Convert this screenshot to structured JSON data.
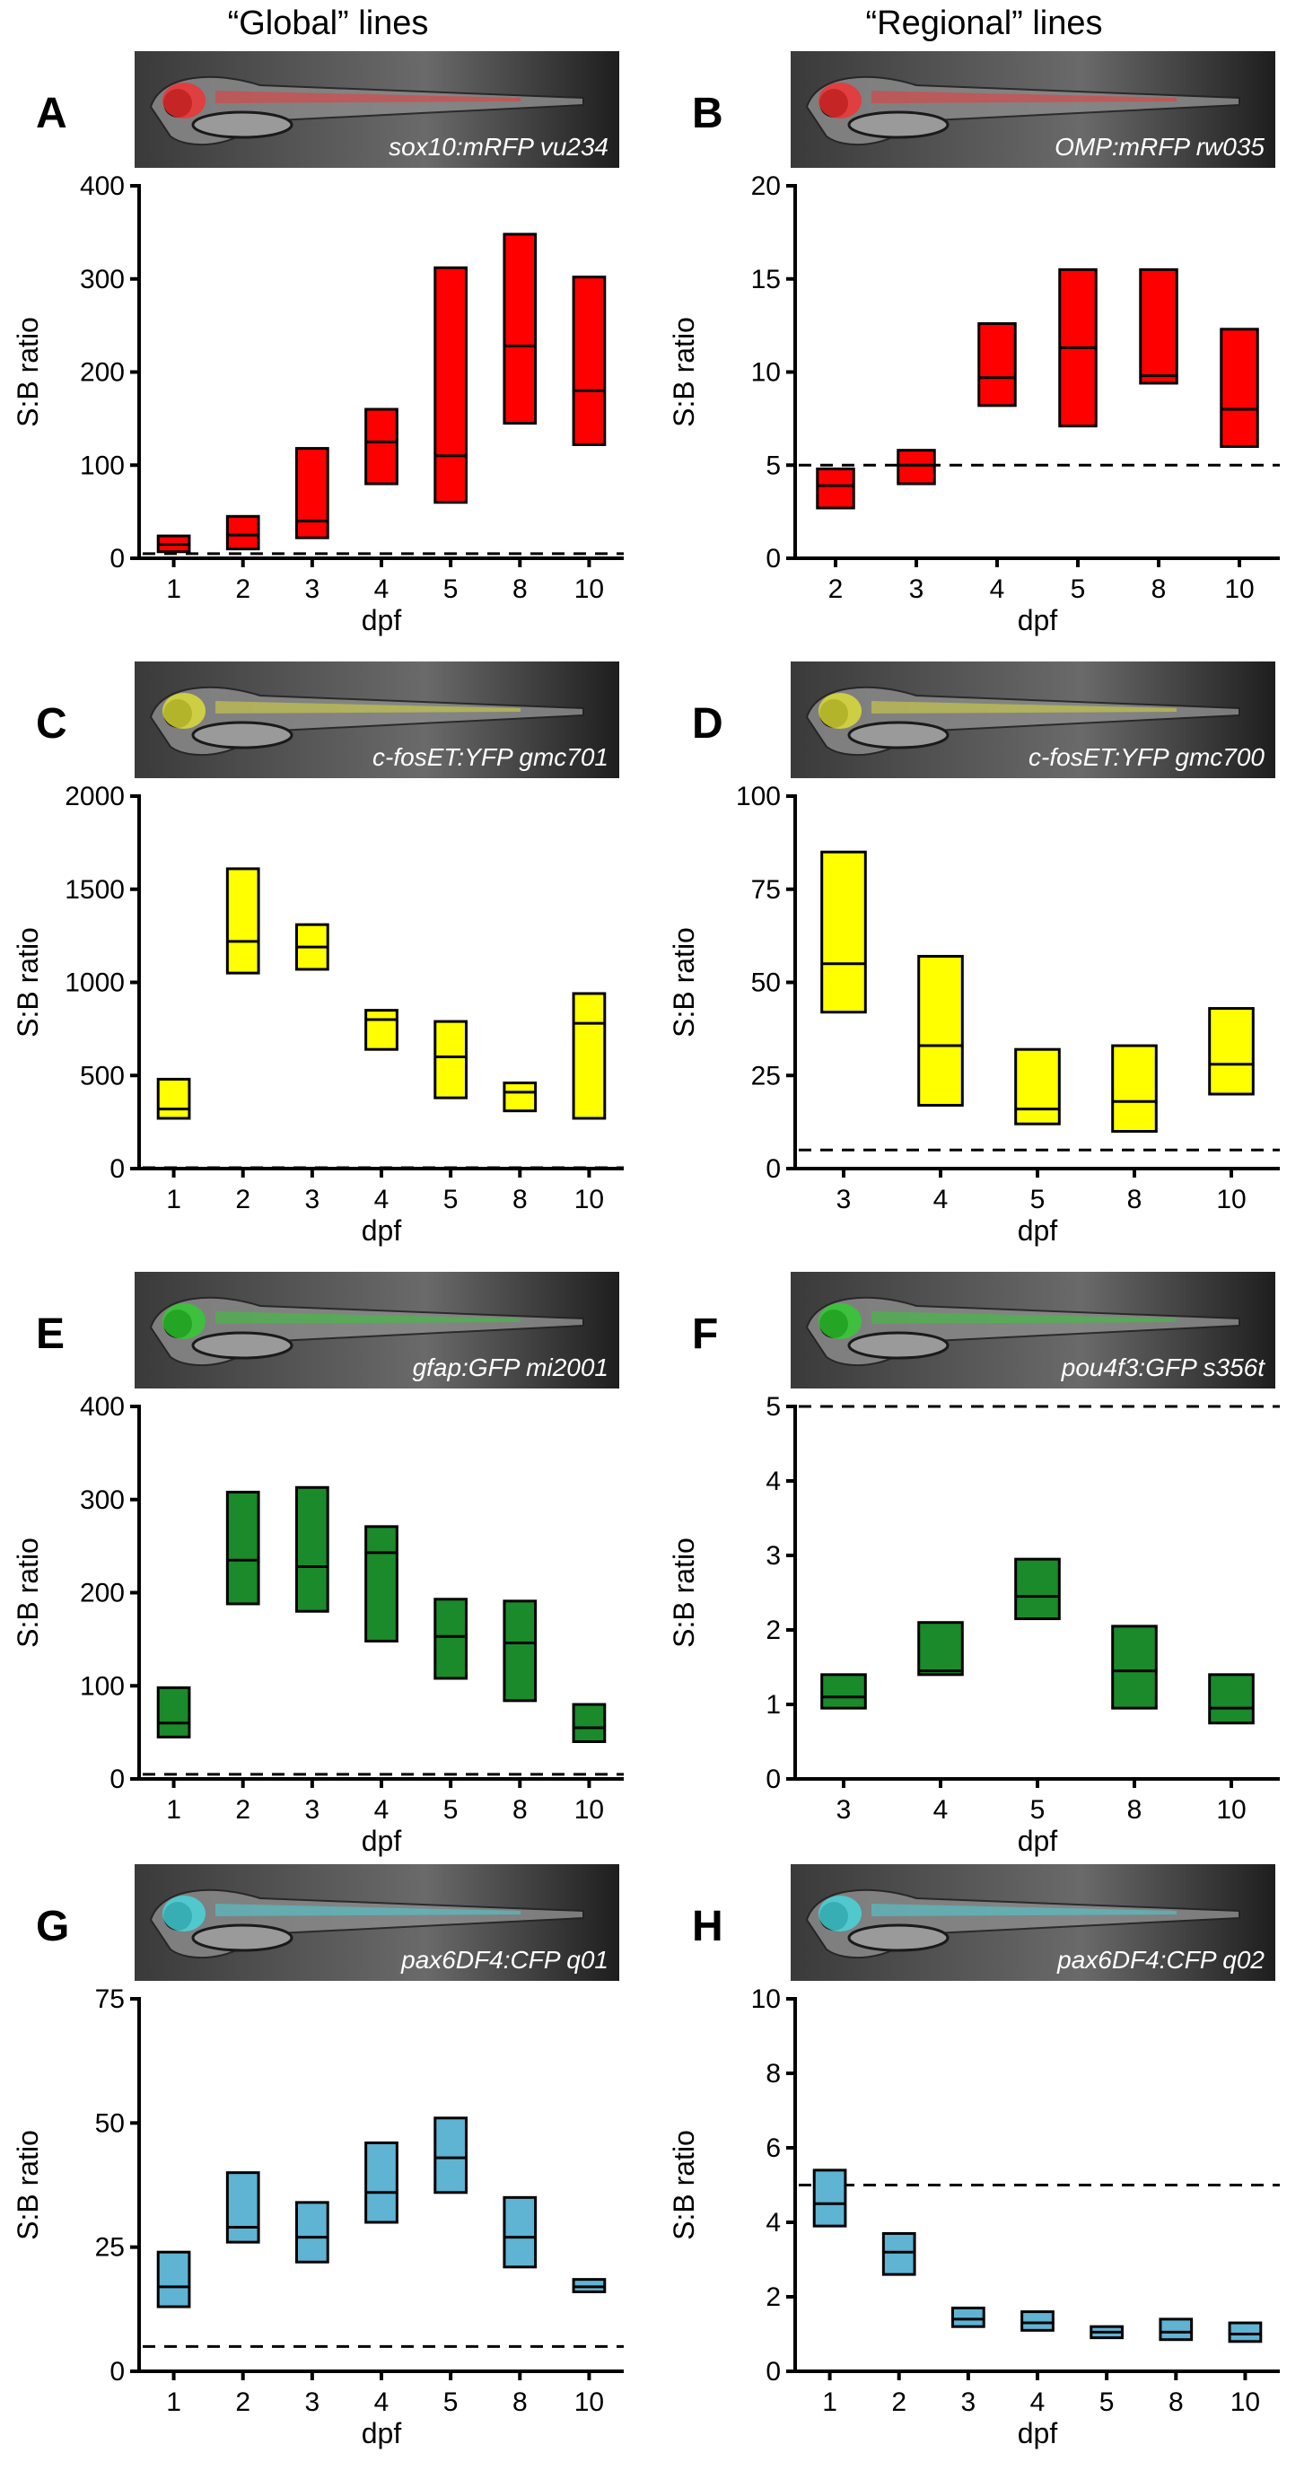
{
  "headers": {
    "left": "“Global” lines",
    "right": "“Regional” lines"
  },
  "chart_data": [
    {
      "panel": "A",
      "type": "box",
      "color": "#ff0000",
      "image_tint": "#ff2a2a",
      "image_caption": "sox10:mRFP vu234",
      "categories": [
        "1",
        "2",
        "3",
        "4",
        "5",
        "8",
        "10"
      ],
      "boxes": [
        {
          "low": 7,
          "median": 15,
          "high": 24
        },
        {
          "low": 10,
          "median": 25,
          "high": 45
        },
        {
          "low": 22,
          "median": 40,
          "high": 118
        },
        {
          "low": 80,
          "median": 125,
          "high": 160
        },
        {
          "low": 60,
          "median": 110,
          "high": 312
        },
        {
          "low": 145,
          "median": 228,
          "high": 348
        },
        {
          "low": 122,
          "median": 180,
          "high": 302
        }
      ],
      "threshold": 5,
      "ylim": [
        0,
        400
      ],
      "yticks": [
        0,
        100,
        200,
        300,
        400
      ],
      "xlabel": "dpf",
      "ylabel": "S:B ratio"
    },
    {
      "panel": "B",
      "type": "box",
      "color": "#ff0000",
      "image_tint": "#ff2a2a",
      "image_caption": "OMP:mRFP rw035",
      "categories": [
        "2",
        "3",
        "4",
        "5",
        "8",
        "10"
      ],
      "boxes": [
        {
          "low": 2.7,
          "median": 3.9,
          "high": 4.8
        },
        {
          "low": 4.0,
          "median": 5.0,
          "high": 5.8
        },
        {
          "low": 8.2,
          "median": 9.7,
          "high": 12.6
        },
        {
          "low": 7.1,
          "median": 11.3,
          "high": 15.5
        },
        {
          "low": 9.4,
          "median": 9.8,
          "high": 15.5
        },
        {
          "low": 6.0,
          "median": 8.0,
          "high": 12.3
        }
      ],
      "threshold": 5,
      "ylim": [
        0,
        20
      ],
      "yticks": [
        0,
        5,
        10,
        15,
        20
      ],
      "xlabel": "dpf",
      "ylabel": "S:B ratio"
    },
    {
      "panel": "C",
      "type": "box",
      "color": "#ffff00",
      "image_tint": "#e8e830",
      "image_caption": "c-fosET:YFP gmc701",
      "categories": [
        "1",
        "2",
        "3",
        "4",
        "5",
        "8",
        "10"
      ],
      "boxes": [
        {
          "low": 270,
          "median": 320,
          "high": 480
        },
        {
          "low": 1050,
          "median": 1220,
          "high": 1610
        },
        {
          "low": 1070,
          "median": 1190,
          "high": 1310
        },
        {
          "low": 640,
          "median": 800,
          "high": 850
        },
        {
          "low": 380,
          "median": 600,
          "high": 790
        },
        {
          "low": 310,
          "median": 410,
          "high": 460
        },
        {
          "low": 270,
          "median": 780,
          "high": 940
        }
      ],
      "threshold": 5,
      "ylim": [
        0,
        2000
      ],
      "yticks": [
        0,
        500,
        1000,
        1500,
        2000
      ],
      "xlabel": "dpf",
      "ylabel": "S:B ratio"
    },
    {
      "panel": "D",
      "type": "box",
      "color": "#ffff00",
      "image_tint": "#e8e830",
      "image_caption": "c-fosET:YFP gmc700",
      "categories": [
        "3",
        "4",
        "5",
        "8",
        "10"
      ],
      "boxes": [
        {
          "low": 42,
          "median": 55,
          "high": 85
        },
        {
          "low": 17,
          "median": 33,
          "high": 57
        },
        {
          "low": 12,
          "median": 16,
          "high": 32
        },
        {
          "low": 10,
          "median": 18,
          "high": 33
        },
        {
          "low": 20,
          "median": 28,
          "high": 43
        }
      ],
      "threshold": 5,
      "ylim": [
        0,
        100
      ],
      "yticks": [
        0,
        25,
        50,
        75,
        100
      ],
      "xlabel": "dpf",
      "ylabel": "S:B ratio"
    },
    {
      "panel": "E",
      "type": "box",
      "color": "#1a8a2a",
      "image_tint": "#28d428",
      "image_caption": "gfap:GFP mi2001",
      "categories": [
        "1",
        "2",
        "3",
        "4",
        "5",
        "8",
        "10"
      ],
      "boxes": [
        {
          "low": 45,
          "median": 60,
          "high": 98
        },
        {
          "low": 188,
          "median": 235,
          "high": 308
        },
        {
          "low": 180,
          "median": 228,
          "high": 313
        },
        {
          "low": 148,
          "median": 243,
          "high": 271
        },
        {
          "low": 108,
          "median": 153,
          "high": 193
        },
        {
          "low": 84,
          "median": 146,
          "high": 191
        },
        {
          "low": 40,
          "median": 55,
          "high": 80
        }
      ],
      "threshold": 5,
      "ylim": [
        0,
        400
      ],
      "yticks": [
        0,
        100,
        200,
        300,
        400
      ],
      "xlabel": "dpf",
      "ylabel": "S:B ratio"
    },
    {
      "panel": "F",
      "type": "box",
      "color": "#1a8a2a",
      "image_tint": "#28d428",
      "image_caption": "pou4f3:GFP s356t",
      "categories": [
        "3",
        "4",
        "5",
        "8",
        "10"
      ],
      "boxes": [
        {
          "low": 0.95,
          "median": 1.1,
          "high": 1.4
        },
        {
          "low": 1.4,
          "median": 1.45,
          "high": 2.1
        },
        {
          "low": 2.15,
          "median": 2.45,
          "high": 2.95
        },
        {
          "low": 0.95,
          "median": 1.45,
          "high": 2.05
        },
        {
          "low": 0.75,
          "median": 0.95,
          "high": 1.4
        }
      ],
      "threshold": 5,
      "ylim": [
        0,
        5
      ],
      "yticks": [
        0,
        1,
        2,
        3,
        4,
        5
      ],
      "xlabel": "dpf",
      "ylabel": "S:B ratio"
    },
    {
      "panel": "G",
      "type": "box",
      "color": "#5fb3d3",
      "image_tint": "#40e0e8",
      "image_caption": "pax6DF4:CFP q01",
      "categories": [
        "1",
        "2",
        "3",
        "4",
        "5",
        "8",
        "10"
      ],
      "boxes": [
        {
          "low": 13,
          "median": 17,
          "high": 24
        },
        {
          "low": 26,
          "median": 29,
          "high": 40
        },
        {
          "low": 22,
          "median": 27,
          "high": 34
        },
        {
          "low": 30,
          "median": 36,
          "high": 46
        },
        {
          "low": 36,
          "median": 43,
          "high": 51
        },
        {
          "low": 21,
          "median": 27,
          "high": 35
        },
        {
          "low": 16,
          "median": 17,
          "high": 18.5
        }
      ],
      "threshold": 5,
      "ylim": [
        0,
        75
      ],
      "yticks": [
        0,
        25,
        50,
        75
      ],
      "xlabel": "dpf",
      "ylabel": "S:B ratio"
    },
    {
      "panel": "H",
      "type": "box",
      "color": "#5fb3d3",
      "image_tint": "#40e0e8",
      "image_caption": "pax6DF4:CFP q02",
      "categories": [
        "1",
        "2",
        "3",
        "4",
        "5",
        "8",
        "10"
      ],
      "boxes": [
        {
          "low": 3.9,
          "median": 4.5,
          "high": 5.4
        },
        {
          "low": 2.6,
          "median": 3.2,
          "high": 3.7
        },
        {
          "low": 1.2,
          "median": 1.4,
          "high": 1.7
        },
        {
          "low": 1.1,
          "median": 1.3,
          "high": 1.6
        },
        {
          "low": 0.9,
          "median": 1.05,
          "high": 1.2
        },
        {
          "low": 0.85,
          "median": 1.05,
          "high": 1.4
        },
        {
          "low": 0.8,
          "median": 1.0,
          "high": 1.3
        }
      ],
      "threshold": 5,
      "ylim": [
        0,
        10
      ],
      "yticks": [
        0,
        2,
        4,
        6,
        8,
        10
      ],
      "xlabel": "dpf",
      "ylabel": "S:B ratio"
    }
  ]
}
